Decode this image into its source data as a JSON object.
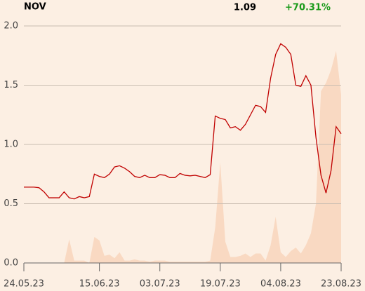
{
  "header": {
    "symbol": "NOV",
    "price": "1.09",
    "change": "+70.31%"
  },
  "chart_data": {
    "type": "line",
    "categories": [
      "24.05.23",
      null,
      null,
      null,
      null,
      null,
      null,
      null,
      null,
      null,
      null,
      null,
      null,
      null,
      null,
      "15.06.23",
      null,
      null,
      null,
      null,
      null,
      null,
      null,
      null,
      null,
      null,
      null,
      "03.07.23",
      null,
      null,
      null,
      null,
      null,
      null,
      null,
      null,
      null,
      null,
      null,
      "19.07.23",
      null,
      null,
      null,
      null,
      null,
      null,
      null,
      null,
      null,
      null,
      null,
      "04.08.23",
      null,
      null,
      null,
      null,
      null,
      null,
      null,
      null,
      null,
      null,
      null,
      "23.08.23"
    ],
    "series": [
      {
        "color": "#c00000",
        "values": [
          0.64,
          0.64,
          0.64,
          0.635,
          0.6,
          0.55,
          0.55,
          0.55,
          0.6,
          0.55,
          0.54,
          0.56,
          0.55,
          0.56,
          0.75,
          0.73,
          0.72,
          0.75,
          0.81,
          0.82,
          0.8,
          0.77,
          0.73,
          0.72,
          0.74,
          0.72,
          0.72,
          0.745,
          0.74,
          0.72,
          0.72,
          0.755,
          0.74,
          0.735,
          0.74,
          0.73,
          0.72,
          0.745,
          1.24,
          1.22,
          1.21,
          1.14,
          1.15,
          1.12,
          1.17,
          1.25,
          1.33,
          1.32,
          1.27,
          1.56,
          1.76,
          1.85,
          1.82,
          1.76,
          1.5,
          1.49,
          1.58,
          1.5,
          1.06,
          0.74,
          0.59,
          0.78,
          1.15,
          1.09
        ]
      },
      {
        "color": "#f9d9c2",
        "axis": "y2",
        "values": [
          0,
          0,
          0,
          0,
          0,
          0,
          0,
          0,
          0,
          0.2,
          0.02,
          0.02,
          0.02,
          0,
          0.22,
          0.19,
          0.06,
          0.07,
          0.04,
          0.09,
          0.02,
          0.02,
          0.03,
          0.02,
          0.02,
          0.01,
          0.02,
          0.02,
          0.02,
          0.01,
          0.01,
          0.01,
          0.01,
          0.01,
          0.01,
          0.01,
          0.01,
          0.02,
          0.3,
          0.85,
          0.18,
          0.05,
          0.05,
          0.06,
          0.08,
          0.05,
          0.08,
          0.08,
          0.02,
          0.15,
          0.39,
          0.09,
          0.05,
          0.1,
          0.13,
          0.08,
          0.15,
          0.25,
          0.5,
          1.45,
          1.52,
          1.63,
          1.79,
          1.42
        ]
      }
    ],
    "ylim": [
      0,
      2
    ],
    "yticks": [
      {
        "value": 0,
        "label": "0.0"
      },
      {
        "value": 0.5,
        "label": "0.5"
      },
      {
        "value": 1,
        "label": "1.0"
      },
      {
        "value": 1.5,
        "label": "1.5"
      },
      {
        "value": 2,
        "label": "2.0"
      }
    ],
    "y2lim": [
      0,
      2
    ],
    "grid": true
  }
}
